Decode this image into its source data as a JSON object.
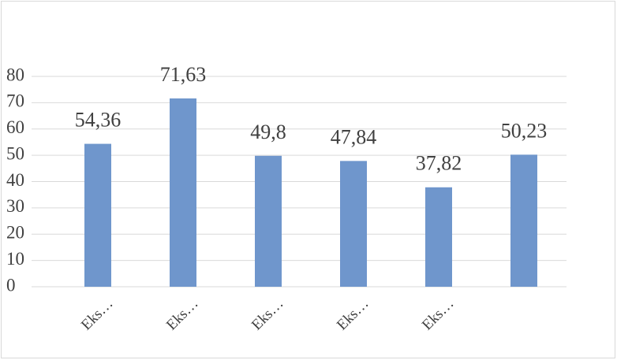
{
  "chart_data": {
    "type": "bar",
    "categories": [
      "Eks…",
      "Eks…",
      "Eks…",
      "Eks…",
      "Eks…",
      null
    ],
    "values": [
      54.36,
      71.63,
      49.8,
      47.84,
      37.82,
      50.23
    ],
    "value_labels": [
      "54,36",
      "71,63",
      "49,8",
      "47,84",
      "37,82",
      "50,23"
    ],
    "color": "#6f96cc",
    "ylim": [
      0,
      80
    ],
    "yticks": [
      0,
      10,
      20,
      30,
      40,
      50,
      60,
      70,
      80
    ],
    "grid": true
  }
}
